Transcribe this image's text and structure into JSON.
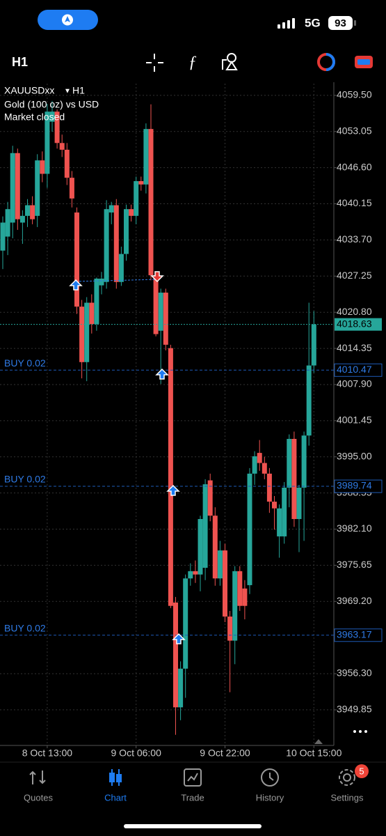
{
  "status_bar": {
    "network": "5G",
    "battery": "93"
  },
  "toolbar": {
    "timeframe": "H1"
  },
  "chart_data": {
    "type": "candlestick",
    "symbol": "XAUUSDxx",
    "timeframe": "H1",
    "description": "Gold (100 oz) vs USD",
    "status": "Market closed",
    "up_color": "#26a69a",
    "down_color": "#ef5350",
    "grid": true,
    "categories": [
      null,
      null,
      null,
      null,
      null,
      null,
      null,
      null,
      null,
      "8 Oct 13:00",
      null,
      null,
      null,
      null,
      null,
      null,
      null,
      null,
      null,
      null,
      null,
      null,
      null,
      null,
      null,
      null,
      null,
      "9 Oct 06:00",
      null,
      null,
      null,
      null,
      null,
      null,
      null,
      null,
      null,
      null,
      null,
      null,
      null,
      null,
      null,
      null,
      null,
      "9 Oct 22:00",
      null,
      null,
      null,
      null,
      null,
      null,
      null,
      null,
      null,
      null,
      null,
      null,
      null,
      null,
      null,
      null,
      null,
      "10 Oct 15:00"
    ],
    "open": [
      4031.8,
      4034.3,
      4036.8,
      4049.2,
      4036.8,
      4038.0,
      4039.9,
      4038.0,
      4047.9,
      4045.5,
      4054.8,
      4056.6,
      4051.0,
      4049.8,
      4044.8,
      4038.6,
      4021.8,
      4011.9,
      4022.5,
      4018.7,
      4025.6,
      4026.2,
      4038.6,
      4039.9,
      4026.2,
      4031.2,
      4039.2,
      4038.0,
      4044.2,
      4043.6,
      4053.5,
      4027.4,
      4017.5,
      4024.3,
      4014.4,
      3969.0,
      3950.3,
      3957.2,
      3973.3,
      3974.6,
      3974.0,
      3975.2,
      3990.8,
      3984.5,
      3973.3,
      3978.3,
      3966.5,
      3962.2,
      3974.6,
      3971.5,
      3972.1,
      3992.0,
      3995.7,
      3993.9,
      3992.0,
      3987.0,
      3980.8,
      3980.8,
      3989.5,
      3998.2,
      3983.9,
      3989.5,
      3998.8,
      4011.3
    ],
    "high": [
      4037.9,
      4040.5,
      4050.5,
      4050.0,
      4039.0,
      4041.0,
      4041.5,
      4049.0,
      4049.5,
      4058.0,
      4058.5,
      4057.0,
      4052.5,
      4051.0,
      4046.0,
      4039.5,
      4023.0,
      4023.5,
      4024.0,
      4027.0,
      4028.0,
      4040.8,
      4040.5,
      4041.0,
      4032.5,
      4040.0,
      4040.0,
      4045.0,
      4045.0,
      4054.5,
      4057.9,
      4028.0,
      4025.0,
      4025.0,
      4015.0,
      3970.0,
      3958.5,
      3974.0,
      3976.0,
      3976.5,
      3984.5,
      3991.0,
      3992.0,
      3986.0,
      3980.0,
      3979.5,
      3967.5,
      3975.5,
      3975.5,
      3973.0,
      3993.0,
      3996.0,
      3998.0,
      3995.0,
      3993.0,
      3988.0,
      3986.5,
      3990.5,
      3999.0,
      3999.5,
      3990.0,
      3999.5,
      4022.5,
      4021.0
    ],
    "low": [
      4028.5,
      4031.0,
      4034.0,
      4035.5,
      4033.0,
      4036.0,
      4036.5,
      4036.0,
      4044.0,
      4043.0,
      4053.0,
      4050.0,
      4048.5,
      4043.5,
      4039.5,
      4020.5,
      4009.0,
      4008.5,
      4017.0,
      4017.5,
      4024.0,
      4025.0,
      4036.5,
      4025.0,
      4025.5,
      4030.0,
      4037.0,
      4036.5,
      4042.5,
      4042.0,
      4026.5,
      4016.5,
      4008.0,
      4014.0,
      3968.0,
      3945.4,
      3948.0,
      3952.0,
      3972.0,
      3972.5,
      3971.0,
      3973.0,
      3983.5,
      3972.0,
      3972.0,
      3965.5,
      3953.0,
      3958.0,
      3967.5,
      3966.0,
      3970.5,
      3990.0,
      3992.5,
      3991.0,
      3985.0,
      3982.0,
      3977.0,
      3979.5,
      3986.0,
      3982.5,
      3978.0,
      3980.0,
      3997.0,
      4010.0
    ],
    "close": [
      4036.8,
      4039.2,
      4049.2,
      4037.4,
      4038.0,
      4039.9,
      4037.4,
      4047.9,
      4045.5,
      4056.6,
      4056.6,
      4051.0,
      4049.8,
      4044.8,
      4041.1,
      4021.8,
      4011.9,
      4022.5,
      4018.7,
      4026.8,
      4026.8,
      4039.2,
      4039.9,
      4026.2,
      4031.2,
      4039.2,
      4038.0,
      4044.2,
      4043.6,
      4053.5,
      4027.4,
      4016.9,
      4024.3,
      4015.0,
      3968.4,
      3950.3,
      3957.2,
      3973.3,
      3974.6,
      3974.0,
      3983.9,
      3990.1,
      3984.5,
      3973.3,
      3978.3,
      3966.5,
      3962.2,
      3974.6,
      3968.4,
      3968.4,
      3992.0,
      3995.1,
      3993.9,
      3992.0,
      3987.0,
      3985.8,
      3985.8,
      3989.5,
      3998.2,
      3983.9,
      3989.5,
      3998.8,
      4011.3,
      4018.63
    ],
    "ylim": [
      3943.5,
      4061.6
    ],
    "yticks": [
      {
        "value": 4059.5,
        "label": "4059.50"
      },
      {
        "value": 4053.05,
        "label": "4053.05"
      },
      {
        "value": 4046.6,
        "label": "4046.60"
      },
      {
        "value": 4040.15,
        "label": "4040.15"
      },
      {
        "value": 4033.7,
        "label": "4033.70"
      },
      {
        "value": 4027.25,
        "label": "4027.25"
      },
      {
        "value": 4020.8,
        "label": "4020.80"
      },
      {
        "value": 4014.35,
        "label": "4014.35"
      },
      {
        "value": 4007.9,
        "label": "4007.90"
      },
      {
        "value": 4001.45,
        "label": "4001.45"
      },
      {
        "value": 3995,
        "label": "3995.00"
      },
      {
        "value": 3988.55,
        "label": "3988.55"
      },
      {
        "value": 3982.1,
        "label": "3982.10"
      },
      {
        "value": 3975.65,
        "label": "3975.65"
      },
      {
        "value": 3969.2,
        "label": "3969.20"
      },
      {
        "value": 3956.3,
        "label": "3956.30"
      },
      {
        "value": 3949.85,
        "label": "3949.85"
      }
    ],
    "current_price": 4018.63,
    "orders": [
      {
        "label": "BUY 0.02",
        "price": 4010.47
      },
      {
        "label": "BUY 0.02",
        "price": 3989.74
      },
      {
        "label": "BUY 0.02",
        "price": 3963.17
      }
    ]
  },
  "nav": {
    "tabs": [
      "Quotes",
      "Chart",
      "Trade",
      "History",
      "Settings"
    ],
    "active": "Chart",
    "settings_badge": "5"
  }
}
